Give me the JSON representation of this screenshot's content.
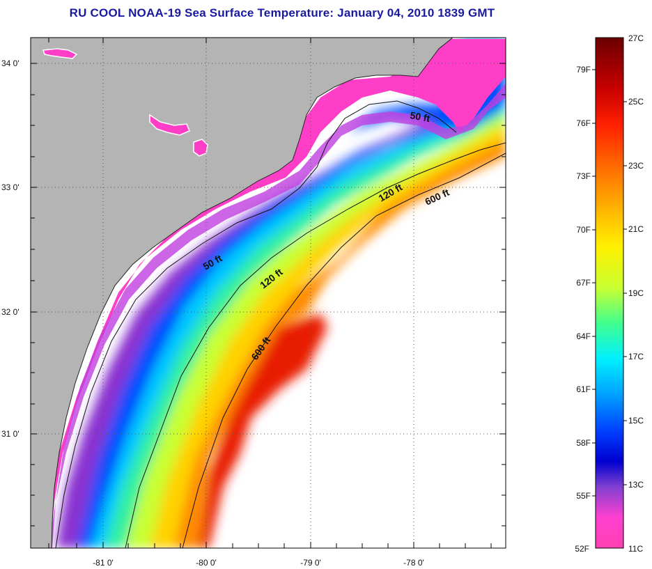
{
  "title": "RU COOL  NOAA-19  Sea Surface Temperature:  January 04, 2010 1839 GMT",
  "colors": {
    "title": "#1a1aa0",
    "land": "#b4b4b4",
    "no_data": "#ffffff",
    "frame": "#000000"
  },
  "map": {
    "lon_labels": [
      "-81 0'",
      "-80 0'",
      "-79 0'",
      "-78 0'"
    ],
    "lat_labels": [
      "34 0'",
      "33 0'",
      "32 0'",
      "31 0'"
    ],
    "isobaths": [
      "50 ft",
      "50 ft",
      "120 ft",
      "120 ft",
      "600 ft",
      "600 ft"
    ]
  },
  "colorbar": {
    "fahrenheit_labels": [
      "79F",
      "76F",
      "73F",
      "70F",
      "67F",
      "64F",
      "61F",
      "58F",
      "55F",
      "52F"
    ],
    "celsius_labels": [
      "27C",
      "25C",
      "23C",
      "21C",
      "19C",
      "17C",
      "15C",
      "13C",
      "11C"
    ],
    "gradient": [
      "#6b0000",
      "#c80000",
      "#ff2000",
      "#ff7a00",
      "#ffc000",
      "#fff000",
      "#c8ff30",
      "#40ff90",
      "#00f0ff",
      "#00a0ff",
      "#0040ff",
      "#0000d0",
      "#8040d0",
      "#ff40d0",
      "#ff40b0"
    ]
  }
}
